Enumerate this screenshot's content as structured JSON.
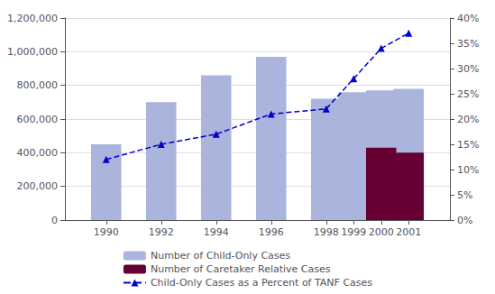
{
  "chart_data": {
    "type": "bar",
    "x": [
      1990,
      1992,
      1994,
      1996,
      1998,
      1999,
      2000,
      2001
    ],
    "xlim": [
      1988.5,
      2002.5
    ],
    "xticks": [
      1990,
      1992,
      1994,
      1996,
      1998,
      1999,
      2000,
      2001
    ],
    "ylim": [
      0,
      1200000
    ],
    "yticks": [
      0,
      {
        "value": 200000,
        "label": "200,000"
      },
      {
        "value": 400000,
        "label": "400,000"
      },
      {
        "value": 600000,
        "label": "600,000"
      },
      {
        "value": 800000,
        "label": "800,000"
      },
      {
        "value": 1000000,
        "label": "1,000,000"
      },
      {
        "value": 1200000,
        "label": "1,200,000"
      }
    ],
    "y2lim": [
      0,
      40
    ],
    "y2ticks": [
      {
        "value": 0,
        "label": "0%"
      },
      {
        "value": 5,
        "label": "5%"
      },
      {
        "value": 10,
        "label": "10%"
      },
      {
        "value": 15,
        "label": "15%"
      },
      {
        "value": 20,
        "label": "20%"
      },
      {
        "value": 25,
        "label": "25%"
      },
      {
        "value": 30,
        "label": "30%"
      },
      {
        "value": 35,
        "label": "35%"
      },
      {
        "value": 40,
        "label": "40%"
      }
    ],
    "grid": true,
    "legend": "bottom",
    "series": [
      {
        "name": "Number of Child-Only Cases",
        "type": "bar",
        "color": "#aab4dd",
        "values": [
          450000,
          700000,
          860000,
          970000,
          720000,
          760000,
          770000,
          780000
        ]
      },
      {
        "name": "Number of Caretaker Relative Cases",
        "type": "bar",
        "color": "#660033",
        "values": [
          0,
          0,
          0,
          0,
          0,
          0,
          430000,
          400000
        ]
      },
      {
        "name": "Child-Only Cases as a Percent of TANF Cases",
        "type": "line",
        "axis": "y2",
        "color": "#0000cc",
        "line_style": "dashed",
        "marker": "triangle",
        "values": [
          12,
          15,
          17,
          21,
          22,
          28,
          34,
          37
        ]
      }
    ]
  }
}
